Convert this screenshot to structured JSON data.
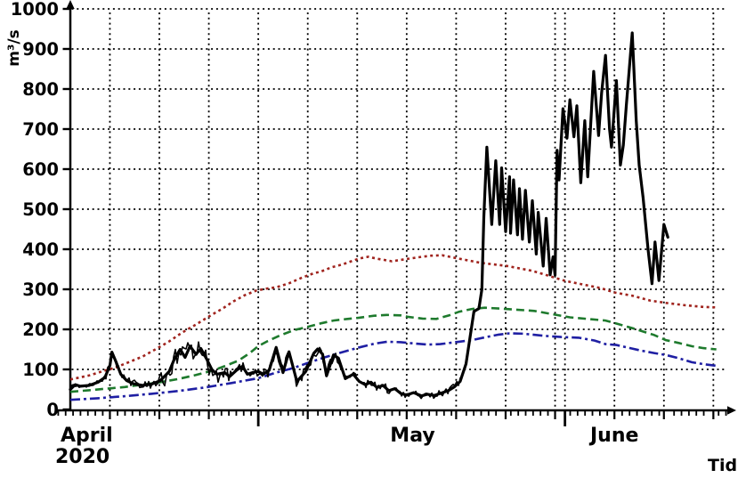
{
  "chart_data": {
    "type": "line",
    "title": "",
    "ylabel": "m³/s",
    "xlabel": "Tid",
    "ylim": [
      0,
      1000
    ],
    "ytick_step": 100,
    "grid": "dotted",
    "legend": "none",
    "colors": {
      "axis": "#000000",
      "grid": "#000000"
    },
    "x_axis": {
      "year": "2020",
      "start_date": "2020-04-12",
      "end_date": "2020-06-16",
      "months": [
        {
          "label": "April",
          "t": 0,
          "align": "left"
        },
        {
          "label": "May",
          "t": 34.6,
          "align": "center"
        },
        {
          "label": "June",
          "t": 55.0,
          "align": "center"
        }
      ],
      "month_start_ticks_t": [
        19,
        50
      ],
      "grid_t": [
        4,
        9,
        14,
        19,
        24,
        29,
        34,
        39,
        44,
        49,
        50,
        55,
        60,
        65
      ]
    },
    "series": [
      {
        "name": "observed-discharge",
        "color": "#000000",
        "style": "solid",
        "width": 3.2,
        "noise_bands": [
          [
            0,
            3,
            7
          ],
          [
            3,
            9,
            10
          ],
          [
            9,
            16,
            25
          ],
          [
            16,
            19,
            12
          ],
          [
            19,
            23,
            17
          ],
          [
            23,
            28,
            14
          ],
          [
            28,
            33,
            10
          ],
          [
            33,
            39.5,
            8
          ],
          [
            39.5,
            41.5,
            4
          ],
          [
            41.5,
            58,
            3
          ],
          [
            58,
            60.5,
            2
          ]
        ],
        "points": [
          [
            0,
            50
          ],
          [
            0.5,
            62
          ],
          [
            1,
            58
          ],
          [
            1.9,
            60
          ],
          [
            2.8,
            68
          ],
          [
            3.5,
            80
          ],
          [
            4,
            110
          ],
          [
            4.2,
            143
          ],
          [
            4.6,
            120
          ],
          [
            5.1,
            88
          ],
          [
            5.7,
            72
          ],
          [
            6.4,
            64
          ],
          [
            7.3,
            60
          ],
          [
            8.2,
            63
          ],
          [
            9.1,
            72
          ],
          [
            10,
            95
          ],
          [
            10.5,
            125
          ],
          [
            11.1,
            150
          ],
          [
            11.6,
            130
          ],
          [
            12.1,
            158
          ],
          [
            12.7,
            138
          ],
          [
            13.2,
            152
          ],
          [
            13.8,
            125
          ],
          [
            14.3,
            100
          ],
          [
            14.8,
            88
          ],
          [
            15.6,
            92
          ],
          [
            16.1,
            82
          ],
          [
            16.8,
            98
          ],
          [
            17.4,
            108
          ],
          [
            17.9,
            88
          ],
          [
            18.4,
            92
          ],
          [
            19,
            95
          ],
          [
            19.5,
            88
          ],
          [
            20.1,
            98
          ],
          [
            20.8,
            155
          ],
          [
            21.5,
            92
          ],
          [
            22.1,
            144
          ],
          [
            22.9,
            70
          ],
          [
            23.8,
            95
          ],
          [
            24.6,
            140
          ],
          [
            25,
            151
          ],
          [
            25.5,
            138
          ],
          [
            25.9,
            84
          ],
          [
            26.6,
            136
          ],
          [
            27.1,
            128
          ],
          [
            27.8,
            77
          ],
          [
            28.6,
            88
          ],
          [
            29.2,
            70
          ],
          [
            29.8,
            62
          ],
          [
            30.4,
            68
          ],
          [
            31,
            55
          ],
          [
            31.6,
            60
          ],
          [
            32.2,
            47
          ],
          [
            32.8,
            52
          ],
          [
            33.4,
            40
          ],
          [
            34,
            36
          ],
          [
            34.7,
            42
          ],
          [
            35.5,
            34
          ],
          [
            36.1,
            38
          ],
          [
            36.8,
            35
          ],
          [
            37.4,
            40
          ],
          [
            38.2,
            47
          ],
          [
            38.8,
            56
          ],
          [
            39.4,
            70
          ],
          [
            40,
            114
          ],
          [
            40.4,
            180
          ],
          [
            40.8,
            245
          ],
          [
            41.3,
            252
          ],
          [
            41.6,
            300
          ],
          [
            41.8,
            480
          ],
          [
            42.1,
            655
          ],
          [
            42.6,
            462
          ],
          [
            43,
            621
          ],
          [
            43.4,
            462
          ],
          [
            43.6,
            603
          ],
          [
            44,
            444
          ],
          [
            44.4,
            581
          ],
          [
            44.5,
            440
          ],
          [
            44.8,
            573
          ],
          [
            45.2,
            436
          ],
          [
            45.4,
            551
          ],
          [
            45.7,
            425
          ],
          [
            46,
            547
          ],
          [
            46.4,
            418
          ],
          [
            46.7,
            521
          ],
          [
            47.1,
            388
          ],
          [
            47.3,
            492
          ],
          [
            47.8,
            358
          ],
          [
            48.1,
            477
          ],
          [
            48.5,
            336
          ],
          [
            48.8,
            381
          ],
          [
            49,
            336
          ],
          [
            49.2,
            647
          ],
          [
            49.4,
            573
          ],
          [
            49.8,
            751
          ],
          [
            50.2,
            677
          ],
          [
            50.5,
            773
          ],
          [
            50.9,
            681
          ],
          [
            51.2,
            758
          ],
          [
            51.6,
            566
          ],
          [
            52,
            721
          ],
          [
            52.3,
            581
          ],
          [
            52.9,
            844
          ],
          [
            53.4,
            684
          ],
          [
            53.7,
            790
          ],
          [
            54.1,
            884
          ],
          [
            54.5,
            700
          ],
          [
            54.7,
            655
          ],
          [
            55.2,
            821
          ],
          [
            55.6,
            610
          ],
          [
            55.9,
            660
          ],
          [
            56.2,
            760
          ],
          [
            56.8,
            940
          ],
          [
            57.2,
            721
          ],
          [
            57.5,
            610
          ],
          [
            57.9,
            529
          ],
          [
            58.4,
            399
          ],
          [
            58.8,
            314
          ],
          [
            59.1,
            418
          ],
          [
            59.5,
            322
          ],
          [
            60,
            462
          ],
          [
            60.4,
            430
          ]
        ]
      },
      {
        "name": "red-dotted-reference",
        "color": "#a0241e",
        "style": "dotted",
        "width": 2.6,
        "points": [
          [
            0,
            75
          ],
          [
            1.9,
            85
          ],
          [
            3.2,
            95
          ],
          [
            4.6,
            105
          ],
          [
            5.9,
            118
          ],
          [
            7.3,
            132
          ],
          [
            8.6,
            150
          ],
          [
            10,
            170
          ],
          [
            11.3,
            192
          ],
          [
            12.7,
            212
          ],
          [
            14,
            232
          ],
          [
            15.4,
            252
          ],
          [
            16.5,
            270
          ],
          [
            17.6,
            285
          ],
          [
            18.8,
            297
          ],
          [
            19.9,
            302
          ],
          [
            20.8,
            305
          ],
          [
            22.1,
            315
          ],
          [
            23.5,
            330
          ],
          [
            24.6,
            340
          ],
          [
            25.3,
            344
          ],
          [
            26.4,
            355
          ],
          [
            27.5,
            362
          ],
          [
            29.2,
            377
          ],
          [
            30.1,
            381
          ],
          [
            31.1,
            376
          ],
          [
            32.5,
            370
          ],
          [
            33.8,
            375
          ],
          [
            35.2,
            380
          ],
          [
            36.5,
            384
          ],
          [
            37.6,
            385
          ],
          [
            39.2,
            377
          ],
          [
            41.5,
            366
          ],
          [
            44.2,
            358
          ],
          [
            46.7,
            346
          ],
          [
            48.2,
            335
          ],
          [
            50,
            321
          ],
          [
            51.8,
            312
          ],
          [
            53.6,
            303
          ],
          [
            55,
            292
          ],
          [
            56.8,
            284
          ],
          [
            58.6,
            272
          ],
          [
            60.2,
            266
          ],
          [
            62.2,
            260
          ],
          [
            64,
            256
          ],
          [
            65.3,
            255
          ]
        ]
      },
      {
        "name": "green-dashed-reference",
        "color": "#1e7a2d",
        "style": "dashed",
        "width": 2.6,
        "points": [
          [
            0,
            44
          ],
          [
            1.9,
            48
          ],
          [
            3.7,
            52
          ],
          [
            5.5,
            56
          ],
          [
            7.3,
            62
          ],
          [
            9.1,
            68
          ],
          [
            10.9,
            76
          ],
          [
            12.7,
            86
          ],
          [
            14.5,
            98
          ],
          [
            15.8,
            110
          ],
          [
            17,
            122
          ],
          [
            18.1,
            140
          ],
          [
            19,
            158
          ],
          [
            19.9,
            170
          ],
          [
            21.2,
            185
          ],
          [
            22.6,
            198
          ],
          [
            24.1,
            207
          ],
          [
            25.3,
            215
          ],
          [
            26.6,
            222
          ],
          [
            28,
            226
          ],
          [
            29.2,
            229
          ],
          [
            30.7,
            234
          ],
          [
            32,
            236
          ],
          [
            33.4,
            235
          ],
          [
            34.2,
            231
          ],
          [
            35.6,
            227
          ],
          [
            37,
            226
          ],
          [
            38.3,
            235
          ],
          [
            39.3,
            244
          ],
          [
            40.6,
            251
          ],
          [
            41.9,
            254
          ],
          [
            43.3,
            252
          ],
          [
            45.1,
            249
          ],
          [
            46.9,
            246
          ],
          [
            48.7,
            238
          ],
          [
            50.5,
            230
          ],
          [
            52.3,
            226
          ],
          [
            54.1,
            222
          ],
          [
            55.4,
            213
          ],
          [
            56.8,
            203
          ],
          [
            57.7,
            196
          ],
          [
            59,
            186
          ],
          [
            60.2,
            173
          ],
          [
            61.5,
            166
          ],
          [
            62.8,
            158
          ],
          [
            64,
            153
          ],
          [
            65.3,
            150
          ]
        ]
      },
      {
        "name": "blue-dashdot-reference",
        "color": "#1f1fa3",
        "style": "dashdot",
        "width": 2.6,
        "points": [
          [
            0,
            24
          ],
          [
            2.8,
            28
          ],
          [
            5.5,
            33
          ],
          [
            8.2,
            39
          ],
          [
            10.9,
            46
          ],
          [
            13.6,
            55
          ],
          [
            16.3,
            66
          ],
          [
            19,
            78
          ],
          [
            20.8,
            92
          ],
          [
            22.6,
            104
          ],
          [
            24.1,
            117
          ],
          [
            25.7,
            130
          ],
          [
            27.5,
            143
          ],
          [
            29.2,
            155
          ],
          [
            30.7,
            164
          ],
          [
            32,
            169
          ],
          [
            33.4,
            168
          ],
          [
            34.7,
            165
          ],
          [
            36.1,
            162
          ],
          [
            37.4,
            163
          ],
          [
            39.3,
            169
          ],
          [
            40.6,
            173
          ],
          [
            41.9,
            180
          ],
          [
            43.3,
            187
          ],
          [
            44.4,
            190
          ],
          [
            45.8,
            189
          ],
          [
            47.8,
            184
          ],
          [
            49.6,
            181
          ],
          [
            51.4,
            179
          ],
          [
            53,
            172
          ],
          [
            54.1,
            163
          ],
          [
            55.2,
            161
          ],
          [
            56.8,
            152
          ],
          [
            57.7,
            147
          ],
          [
            59,
            141
          ],
          [
            60.2,
            136
          ],
          [
            61.5,
            128
          ],
          [
            62.8,
            118
          ],
          [
            64,
            113
          ],
          [
            65.3,
            109
          ]
        ]
      }
    ]
  }
}
